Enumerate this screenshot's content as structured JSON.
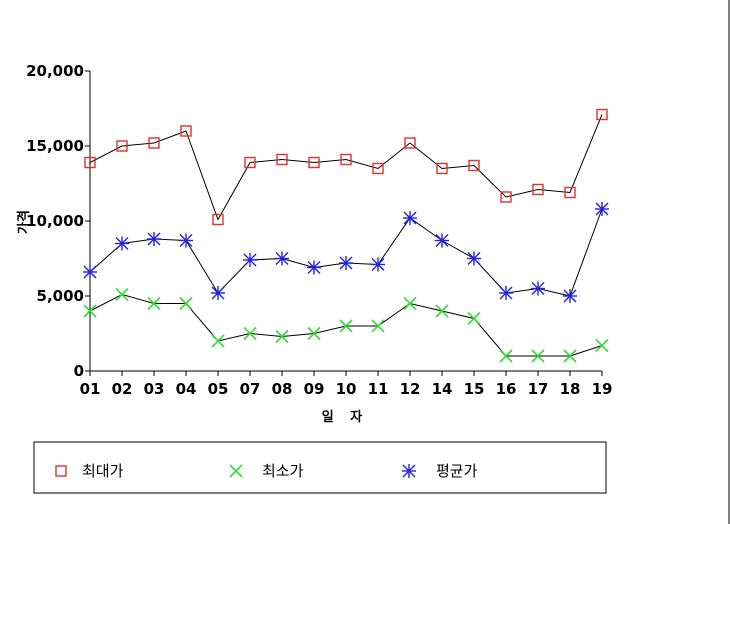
{
  "chart_data": {
    "type": "line",
    "title": "",
    "xlabel": "일 자",
    "ylabel": "가격",
    "ylim": [
      0,
      20000
    ],
    "yticks": [
      0,
      5000,
      10000,
      15000,
      20000
    ],
    "ytick_labels": [
      "0",
      "5,000",
      "10,000",
      "15,000",
      "20,000"
    ],
    "grid": false,
    "legend_position": "bottom",
    "categories": [
      "01",
      "02",
      "03",
      "04",
      "05",
      "07",
      "08",
      "09",
      "10",
      "11",
      "12",
      "14",
      "15",
      "16",
      "17",
      "18",
      "19"
    ],
    "series": [
      {
        "name": "최대가",
        "color": "#e03030",
        "marker": "square",
        "values": [
          13900,
          15000,
          15200,
          16000,
          10100,
          13900,
          14100,
          13900,
          14100,
          13500,
          15200,
          13500,
          13700,
          11600,
          12100,
          11900,
          17100
        ]
      },
      {
        "name": "최소가",
        "color": "#33dd33",
        "marker": "x",
        "values": [
          4000,
          5100,
          4500,
          4500,
          2000,
          2500,
          2300,
          2500,
          3000,
          3000,
          4500,
          4000,
          3500,
          1000,
          1000,
          1000,
          1700
        ]
      },
      {
        "name": "평균가",
        "color": "#2222dd",
        "marker": "asterisk",
        "values": [
          6600,
          8500,
          8800,
          8700,
          5200,
          7400,
          7500,
          6900,
          7200,
          7100,
          10200,
          8700,
          7500,
          5200,
          5500,
          5000,
          10800
        ]
      }
    ]
  }
}
